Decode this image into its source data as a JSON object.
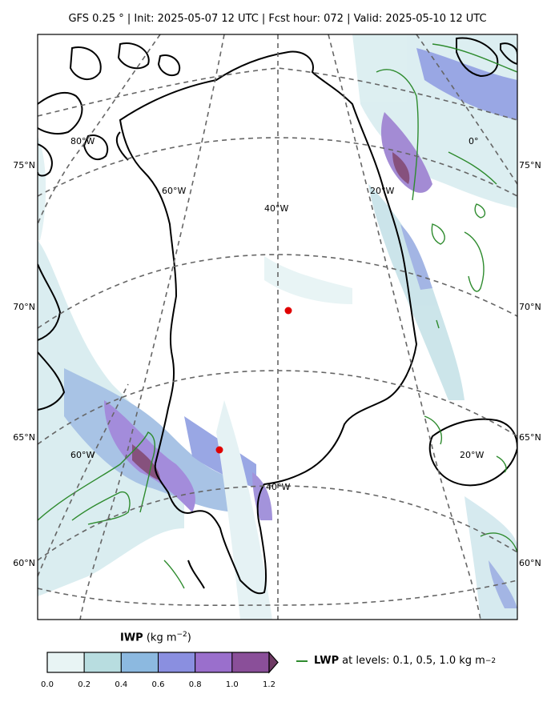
{
  "header": {
    "title": "GFS 0.25 °  |  Init: 2025-05-07 12 UTC  |  Fcst hour: 072  |  Valid: 2025-05-10 12 UTC"
  },
  "map": {
    "lat_labels_left": [
      "75°N",
      "70°N",
      "65°N",
      "60°N"
    ],
    "lat_labels_right": [
      "75°N",
      "70°N",
      "65°N",
      "60°N"
    ],
    "lon_labels_top": [
      "80°W",
      "60°W",
      "40°W",
      "20°W",
      "0°"
    ],
    "lon_labels_bottom": [
      "60°W",
      "40°W",
      "20°W"
    ],
    "markers": [
      {
        "name": "marker-summit",
        "color": "#e00000"
      },
      {
        "name": "marker-southwest",
        "color": "#e00000"
      }
    ]
  },
  "colorbar": {
    "title_bold": "IWP",
    "title_unit": "(kg m",
    "title_exp": "−2",
    "title_close": ")",
    "ticks": [
      "0.0",
      "0.2",
      "0.4",
      "0.6",
      "0.8",
      "1.0",
      "1.2"
    ],
    "colors": [
      "#e8f4f4",
      "#b8dde0",
      "#8cb9e0",
      "#8a8fe0",
      "#9a6fcc",
      "#8a4f99",
      "#6e3a64"
    ]
  },
  "legend": {
    "label_bold": "LWP",
    "label_rest": "at levels: 0.1, 0.5, 1.0  kg m",
    "exp": "−2",
    "color": "#2e8b2e"
  }
}
